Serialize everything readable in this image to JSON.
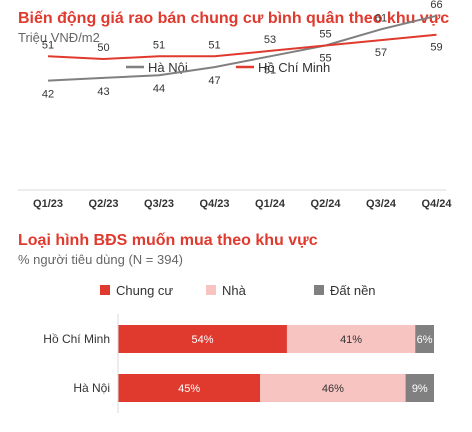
{
  "colors": {
    "title": "#e03a2f",
    "hanoi": "#808080",
    "hcm": "#e03a2f",
    "chung_cu": "#e03a2f",
    "nha": "#f7c4c1",
    "dat_nen": "#808080"
  },
  "chart_data": [
    {
      "type": "line",
      "title": "Biến động giá rao bán chung cư bình quân theo khu vực",
      "subtitle": "Triệu VNĐ/m2",
      "categories": [
        "Q1/23",
        "Q2/23",
        "Q3/23",
        "Q4/23",
        "Q1/24",
        "Q2/24",
        "Q3/24",
        "Q4/24"
      ],
      "series": [
        {
          "name": "Hà Nội",
          "values": [
            42,
            43,
            44,
            47,
            51,
            55,
            61,
            66
          ]
        },
        {
          "name": "Hồ Chí Minh",
          "values": [
            51,
            50,
            51,
            51,
            53,
            55,
            57,
            59
          ]
        }
      ],
      "legend": "top",
      "grid": false
    },
    {
      "type": "bar",
      "orientation": "horizontal",
      "stacked": true,
      "title": "Loại hình BĐS muốn mua theo khu vực",
      "subtitle": "% người tiêu dùng (N = 394)",
      "categories": [
        "Hồ Chí Minh",
        "Hà Nội"
      ],
      "series": [
        {
          "name": "Chung cư",
          "values": [
            54,
            45
          ]
        },
        {
          "name": "Nhà",
          "values": [
            41,
            46
          ]
        },
        {
          "name": "Đất nền",
          "values": [
            6,
            9
          ]
        }
      ],
      "value_suffix": "%",
      "legend": "top-left"
    }
  ]
}
